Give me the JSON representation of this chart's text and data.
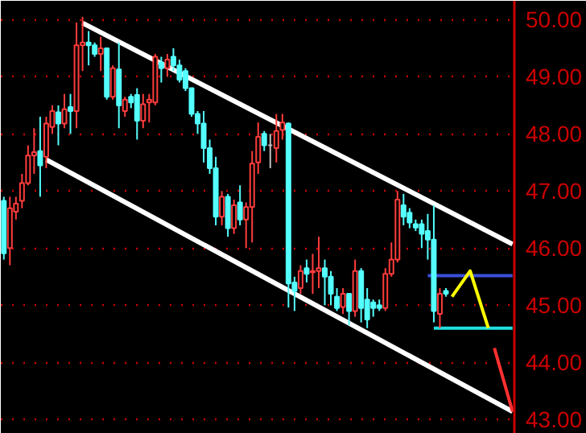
{
  "chart_data": {
    "type": "candlestick",
    "ylim": [
      42.75,
      50.33
    ],
    "yticks": [
      {
        "value": 43,
        "label": "43.00"
      },
      {
        "value": 44,
        "label": "44.00"
      },
      {
        "value": 45,
        "label": "45.00"
      },
      {
        "value": 46,
        "label": "46.00"
      },
      {
        "value": 47,
        "label": "47.00"
      },
      {
        "value": 48,
        "label": "48.00"
      },
      {
        "value": 49,
        "label": "49.00"
      },
      {
        "value": 50,
        "label": "50.00"
      }
    ],
    "grid": "y",
    "tick_labels": "y",
    "categories": [
      null,
      null,
      null,
      null,
      null,
      null,
      null,
      null,
      null,
      null,
      null,
      null,
      null,
      null,
      null,
      null,
      null,
      null,
      null,
      null,
      null,
      null,
      null,
      null,
      null,
      null,
      null,
      null,
      null,
      null,
      null,
      null,
      null,
      null,
      null,
      null,
      null,
      null,
      null,
      null,
      null,
      null,
      null,
      null,
      null,
      null,
      null,
      null,
      null,
      null,
      null,
      null,
      null,
      null,
      null,
      null,
      null,
      null,
      null,
      null,
      null,
      null,
      null,
      null,
      null,
      null,
      null,
      null,
      null,
      null,
      null,
      null,
      null,
      null,
      null,
      null,
      null,
      null,
      null,
      null,
      null,
      null,
      null,
      null,
      null
    ],
    "series": [
      {
        "ohlc": [
          [
            46.83,
            46.9,
            45.8,
            45.91
          ],
          [
            46.0,
            46.9,
            45.7,
            46.7
          ],
          [
            46.64,
            46.9,
            46.5,
            46.78
          ],
          [
            46.83,
            47.3,
            46.7,
            47.14
          ],
          [
            47.14,
            47.8,
            47.1,
            47.62
          ],
          [
            47.62,
            48.1,
            47.3,
            47.68
          ],
          [
            47.7,
            48.3,
            46.9,
            47.45
          ],
          [
            47.6,
            48.3,
            47.4,
            48.18
          ],
          [
            48.12,
            48.5,
            48.0,
            48.4
          ],
          [
            48.38,
            48.5,
            47.8,
            48.18
          ],
          [
            48.18,
            48.7,
            48.1,
            48.43
          ],
          [
            48.47,
            48.7,
            48.0,
            48.4
          ],
          [
            48.4,
            49.95,
            48.1,
            49.55
          ],
          [
            49.55,
            50.05,
            49.1,
            49.6
          ],
          [
            49.6,
            49.8,
            49.2,
            49.55
          ],
          [
            49.55,
            49.6,
            49.35,
            49.4
          ],
          [
            49.4,
            49.7,
            49.1,
            49.5
          ],
          [
            49.5,
            49.5,
            48.6,
            48.65
          ],
          [
            48.65,
            49.2,
            48.6,
            49.15
          ],
          [
            49.13,
            49.6,
            48.1,
            48.5
          ],
          [
            48.4,
            48.65,
            48.3,
            48.6
          ],
          [
            48.65,
            48.7,
            48.45,
            48.55
          ],
          [
            48.68,
            48.8,
            47.9,
            48.23
          ],
          [
            48.23,
            48.7,
            48.1,
            48.52
          ],
          [
            48.55,
            48.7,
            48.2,
            48.6
          ],
          [
            48.55,
            49.4,
            48.5,
            49.35
          ],
          [
            49.25,
            49.35,
            48.9,
            49.15
          ],
          [
            49.15,
            49.4,
            49.0,
            49.3
          ],
          [
            49.35,
            49.5,
            49.1,
            49.2
          ],
          [
            49.2,
            49.3,
            48.9,
            48.95
          ],
          [
            49.1,
            49.15,
            48.75,
            48.8
          ],
          [
            48.8,
            48.8,
            48.3,
            48.35
          ],
          [
            48.35,
            48.4,
            48.0,
            48.18
          ],
          [
            48.18,
            48.4,
            47.5,
            47.75
          ],
          [
            47.75,
            47.9,
            47.3,
            47.4
          ],
          [
            47.4,
            47.6,
            46.4,
            46.55
          ],
          [
            46.55,
            47.0,
            46.4,
            46.9
          ],
          [
            46.9,
            46.95,
            46.2,
            46.35
          ],
          [
            46.35,
            46.85,
            46.25,
            46.75
          ],
          [
            46.8,
            47.1,
            46.4,
            46.5
          ],
          [
            46.5,
            46.8,
            46.0,
            46.72
          ],
          [
            46.72,
            47.7,
            46.1,
            47.48
          ],
          [
            47.5,
            48.2,
            47.3,
            47.95
          ],
          [
            48.0,
            48.05,
            47.7,
            47.8
          ],
          [
            47.8,
            48.0,
            47.4,
            47.8
          ],
          [
            47.75,
            48.35,
            47.5,
            48.05
          ],
          [
            48.07,
            48.35,
            47.9,
            48.2
          ],
          [
            48.18,
            48.2,
            44.96,
            45.38
          ],
          [
            45.4,
            45.5,
            44.9,
            45.25
          ],
          [
            45.3,
            45.7,
            45.2,
            45.6
          ],
          [
            45.65,
            45.8,
            45.4,
            45.55
          ],
          [
            45.58,
            45.9,
            45.2,
            45.6
          ],
          [
            45.6,
            46.2,
            45.3,
            45.65
          ],
          [
            45.65,
            45.8,
            45.0,
            45.5
          ],
          [
            45.5,
            45.6,
            45.0,
            45.2
          ],
          [
            45.15,
            45.3,
            44.9,
            44.95
          ],
          [
            44.97,
            45.3,
            44.85,
            45.2
          ],
          [
            45.2,
            45.2,
            44.65,
            44.9
          ],
          [
            44.9,
            45.8,
            44.8,
            45.6
          ],
          [
            45.6,
            45.65,
            44.7,
            44.95
          ],
          [
            45.1,
            45.3,
            44.6,
            44.75
          ],
          [
            45.05,
            45.1,
            44.8,
            44.95
          ],
          [
            45.0,
            45.1,
            44.9,
            44.95
          ],
          [
            44.95,
            45.65,
            44.9,
            45.55
          ],
          [
            45.55,
            46.1,
            45.5,
            45.8
          ],
          [
            45.8,
            47.0,
            45.75,
            46.85
          ],
          [
            46.75,
            46.95,
            46.4,
            46.55
          ],
          [
            46.62,
            46.7,
            46.35,
            46.45
          ],
          [
            46.42,
            46.5,
            46.3,
            46.36
          ],
          [
            46.42,
            46.5,
            46.0,
            46.25
          ],
          [
            46.3,
            46.6,
            45.8,
            46.15
          ],
          [
            46.15,
            46.75,
            44.7,
            44.9
          ],
          [
            44.85,
            45.3,
            44.6,
            45.2
          ],
          [
            45.25,
            45.3,
            45.15,
            45.2
          ],
          null,
          null,
          null,
          null,
          null,
          null,
          null,
          null,
          null,
          null,
          null
        ],
        "colors": [
          "#54ffff",
          "#ff3c3c",
          "#ff3c3c",
          "#ff3c3c",
          "#ff3c3c",
          "#ff3c3c",
          "#54ffff",
          "#ff3c3c",
          "#ff3c3c",
          "#54ffff",
          "#ff3c3c",
          "#54ffff",
          "#ff3c3c",
          "#ff3c3c",
          "#54ffff",
          "#54ffff",
          "#ff3c3c",
          "#54ffff",
          "#ff3c3c",
          "#54ffff",
          "#ff3c3c",
          "#54ffff",
          "#54ffff",
          "#ff3c3c",
          "#ff3c3c",
          "#ff3c3c",
          "#54ffff",
          "#ff3c3c",
          "#54ffff",
          "#54ffff",
          "#54ffff",
          "#54ffff",
          "#54ffff",
          "#54ffff",
          "#54ffff",
          "#54ffff",
          "#ff3c3c",
          "#54ffff",
          "#ff3c3c",
          "#54ffff",
          "#ff3c3c",
          "#ff3c3c",
          "#ff3c3c",
          "#54ffff",
          "#c0c0c0",
          "#ff3c3c",
          "#ff3c3c",
          "#54ffff",
          "#54ffff",
          "#ff3c3c",
          "#54ffff",
          "#ff3c3c",
          "#ff3c3c",
          "#54ffff",
          "#54ffff",
          "#54ffff",
          "#ff3c3c",
          "#54ffff",
          "#ff3c3c",
          "#54ffff",
          "#54ffff",
          "#54ffff",
          "#54ffff",
          "#ff3c3c",
          "#ff3c3c",
          "#ff3c3c",
          "#54ffff",
          "#54ffff",
          "#54ffff",
          "#54ffff",
          "#54ffff",
          "#54ffff",
          "#ff3c3c",
          "#54ffff",
          null,
          null,
          null,
          null,
          null,
          null,
          null,
          null,
          null,
          null,
          null
        ]
      },
      {
        "type": "line",
        "color": "#ffffff",
        "values": [
          null,
          null,
          null,
          null,
          null,
          null,
          null,
          null,
          null,
          null,
          null,
          null,
          null,
          49.94,
          null,
          null,
          null,
          null,
          null,
          null,
          null,
          null,
          null,
          null,
          null,
          null,
          null,
          null,
          null,
          null,
          null,
          null,
          null,
          null,
          null,
          null,
          null,
          null,
          null,
          null,
          null,
          null,
          null,
          null,
          null,
          null,
          null,
          null,
          null,
          null,
          null,
          null,
          null,
          null,
          null,
          null,
          null,
          null,
          null,
          null,
          null,
          null,
          null,
          null,
          null,
          null,
          null,
          null,
          null,
          null,
          null,
          null,
          null,
          null,
          null,
          null,
          null,
          null,
          null,
          null,
          null,
          null,
          null,
          null,
          46.07
        ]
      },
      {
        "type": "line",
        "color": "#ffffff",
        "values": [
          null,
          null,
          null,
          null,
          null,
          null,
          null,
          47.55,
          null,
          null,
          null,
          null,
          null,
          null,
          null,
          null,
          null,
          null,
          null,
          null,
          null,
          null,
          null,
          null,
          null,
          null,
          null,
          null,
          null,
          null,
          null,
          null,
          null,
          null,
          null,
          null,
          null,
          null,
          null,
          null,
          null,
          null,
          null,
          null,
          null,
          null,
          null,
          null,
          null,
          null,
          null,
          null,
          null,
          null,
          null,
          null,
          null,
          null,
          null,
          null,
          null,
          null,
          null,
          null,
          null,
          null,
          null,
          null,
          null,
          null,
          null,
          null,
          null,
          null,
          null,
          null,
          null,
          null,
          null,
          null,
          null,
          null,
          null,
          null,
          43.14
        ]
      },
      {
        "type": "line",
        "color": "#3a4fd8",
        "values": [
          null,
          null,
          null,
          null,
          null,
          null,
          null,
          null,
          null,
          null,
          null,
          null,
          null,
          null,
          null,
          null,
          null,
          null,
          null,
          null,
          null,
          null,
          null,
          null,
          null,
          null,
          null,
          null,
          null,
          null,
          null,
          null,
          null,
          null,
          null,
          null,
          null,
          null,
          null,
          null,
          null,
          null,
          null,
          null,
          null,
          null,
          null,
          null,
          null,
          null,
          null,
          null,
          null,
          null,
          null,
          null,
          null,
          null,
          null,
          null,
          null,
          null,
          null,
          null,
          null,
          null,
          null,
          null,
          null,
          null,
          45.52,
          null,
          null,
          null,
          null,
          null,
          null,
          null,
          null,
          null,
          null,
          null,
          null,
          null,
          45.52
        ]
      },
      {
        "type": "line",
        "color": "#20e0e0",
        "values": [
          null,
          null,
          null,
          null,
          null,
          null,
          null,
          null,
          null,
          null,
          null,
          null,
          null,
          null,
          null,
          null,
          null,
          null,
          null,
          null,
          null,
          null,
          null,
          null,
          null,
          null,
          null,
          null,
          null,
          null,
          null,
          null,
          null,
          null,
          null,
          null,
          null,
          null,
          null,
          null,
          null,
          null,
          null,
          null,
          null,
          null,
          null,
          null,
          null,
          null,
          null,
          null,
          null,
          null,
          null,
          null,
          null,
          null,
          null,
          null,
          null,
          null,
          null,
          null,
          null,
          null,
          null,
          null,
          null,
          null,
          null,
          44.6,
          null,
          null,
          null,
          null,
          null,
          null,
          null,
          null,
          null,
          null,
          null,
          null,
          44.6
        ]
      },
      {
        "type": "line",
        "color": "#ffff00",
        "values": [
          null,
          null,
          null,
          null,
          null,
          null,
          null,
          null,
          null,
          null,
          null,
          null,
          null,
          null,
          null,
          null,
          null,
          null,
          null,
          null,
          null,
          null,
          null,
          null,
          null,
          null,
          null,
          null,
          null,
          null,
          null,
          null,
          null,
          null,
          null,
          null,
          null,
          null,
          null,
          null,
          null,
          null,
          null,
          null,
          null,
          null,
          null,
          null,
          null,
          null,
          null,
          null,
          null,
          null,
          null,
          null,
          null,
          null,
          null,
          null,
          null,
          null,
          null,
          null,
          null,
          null,
          null,
          null,
          null,
          null,
          null,
          null,
          null,
          null,
          45.15,
          null,
          null,
          45.6,
          null,
          null,
          44.6,
          null,
          null,
          null,
          null
        ]
      },
      {
        "type": "line",
        "color": "#ff3030",
        "values": [
          null,
          null,
          null,
          null,
          null,
          null,
          null,
          null,
          null,
          null,
          null,
          null,
          null,
          null,
          null,
          null,
          null,
          null,
          null,
          null,
          null,
          null,
          null,
          null,
          null,
          null,
          null,
          null,
          null,
          null,
          null,
          null,
          null,
          null,
          null,
          null,
          null,
          null,
          null,
          null,
          null,
          null,
          null,
          null,
          null,
          null,
          null,
          null,
          null,
          null,
          null,
          null,
          null,
          null,
          null,
          null,
          null,
          null,
          null,
          null,
          null,
          null,
          null,
          null,
          null,
          null,
          null,
          null,
          null,
          null,
          null,
          null,
          null,
          null,
          null,
          null,
          null,
          null,
          null,
          null,
          null,
          44.25,
          null,
          null,
          43.14
        ]
      }
    ]
  }
}
